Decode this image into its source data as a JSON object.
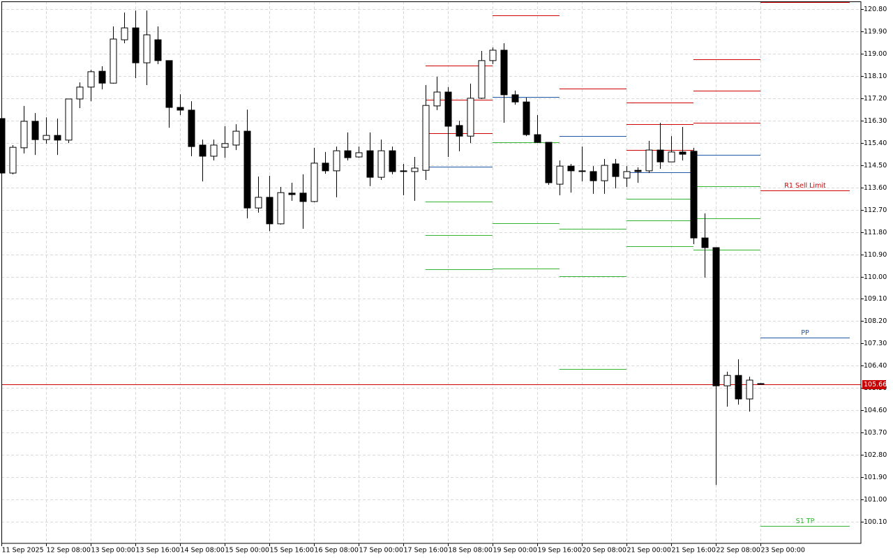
{
  "chart_data": {
    "type": "candlestick",
    "categories": [
      "11 Sep 2025",
      null,
      null,
      null,
      "12 Sep 08:00",
      null,
      null,
      null,
      "13 Sep 00:00",
      null,
      null,
      null,
      "13 Sep 16:00",
      null,
      null,
      null,
      "14 Sep 08:00",
      null,
      null,
      null,
      "15 Sep 00:00",
      null,
      null,
      null,
      "15 Sep 16:00",
      null,
      null,
      null,
      "16 Sep 08:00",
      null,
      null,
      null,
      "17 Sep 00:00",
      null,
      null,
      null,
      "17 Sep 16:00",
      null,
      null,
      null,
      "18 Sep 08:00",
      null,
      null,
      null,
      "19 Sep 00:00",
      null,
      null,
      null,
      "19 Sep 16:00",
      null,
      null,
      null,
      "20 Sep 08:00",
      null,
      null,
      null,
      "21 Sep 00:00",
      null,
      null,
      null,
      "21 Sep 16:00",
      null,
      null,
      null,
      "22 Sep 08:00",
      null,
      null,
      null,
      "23 Sep 00:00"
    ],
    "open": [
      116.38,
      114.18,
      115.2,
      116.27,
      115.53,
      115.7,
      115.51,
      117.17,
      117.65,
      118.29,
      117.81,
      119.56,
      120.04,
      118.63,
      119.56,
      118.72,
      116.83,
      116.72,
      115.31,
      114.86,
      115.22,
      115.31,
      115.87,
      112.77,
      113.2,
      112.13,
      113.37,
      113.37,
      113.03,
      114.58,
      114.27,
      115.08,
      114.83,
      115.08,
      114.01,
      115.08,
      114.27,
      114.24,
      114.29,
      116.89,
      117.45,
      116.1,
      115.67,
      117.2,
      118.72,
      119.14,
      117.34,
      117.05,
      115.73,
      115.42,
      113.73,
      114.46,
      114.27,
      114.24,
      113.87,
      114.55,
      113.98,
      114.29,
      114.27,
      115.11,
      114.63,
      115.03,
      115.06,
      111.56,
      111.17,
      105.59,
      106.01,
      105.06,
      105.68
    ],
    "high": [
      116.43,
      115.31,
      116.89,
      116.6,
      116.43,
      116.38,
      117.17,
      117.84,
      118.35,
      118.49,
      120.1,
      120.66,
      120.74,
      120.74,
      120.1,
      118.72,
      117.36,
      117.08,
      115.53,
      115.53,
      116.07,
      116.15,
      116.74,
      114.04,
      114.07,
      113.62,
      113.79,
      114.13,
      115.2,
      115.03,
      115.25,
      115.82,
      115.25,
      115.82,
      115.53,
      115.25,
      114.55,
      114.83,
      117.73,
      118.07,
      117.65,
      116.29,
      117.79,
      119.11,
      119.25,
      119.42,
      117.51,
      117.22,
      116.52,
      115.42,
      114.69,
      114.55,
      115.25,
      114.46,
      114.75,
      114.75,
      114.46,
      114.41,
      115.48,
      116.21,
      115.67,
      116.04,
      115.2,
      112.55,
      111.17,
      106.16,
      106.66,
      105.96,
      105.7
    ],
    "low": [
      114.13,
      114.13,
      114.97,
      114.91,
      115.37,
      114.91,
      115.39,
      116.8,
      117.08,
      117.56,
      117.79,
      119.42,
      118.01,
      117.73,
      118.58,
      116.01,
      116.52,
      114.86,
      113.84,
      114.69,
      114.8,
      115.11,
      112.35,
      112.58,
      111.84,
      112.1,
      113.06,
      111.93,
      113.0,
      114.15,
      113.2,
      114.69,
      114.8,
      113.65,
      113.9,
      114.13,
      113.28,
      113.06,
      113.9,
      116.72,
      114.83,
      115.06,
      115.39,
      117.17,
      118.58,
      116.21,
      116.94,
      115.67,
      115.39,
      113.7,
      113.28,
      113.39,
      113.84,
      113.34,
      113.34,
      113.56,
      113.62,
      113.79,
      114.18,
      114.35,
      114.63,
      114.69,
      111.31,
      109.96,
      101.59,
      104.75,
      104.83,
      104.55,
      105.63
    ],
    "close": [
      114.18,
      115.22,
      116.27,
      115.53,
      115.7,
      115.51,
      117.17,
      117.65,
      118.27,
      117.81,
      119.59,
      120.04,
      118.63,
      119.76,
      118.72,
      116.83,
      116.72,
      115.25,
      114.86,
      115.31,
      115.37,
      115.87,
      112.77,
      113.2,
      112.13,
      113.39,
      113.31,
      113.03,
      114.58,
      114.27,
      115.08,
      114.8,
      115.0,
      114.01,
      115.08,
      114.24,
      114.24,
      114.38,
      116.91,
      117.45,
      116.07,
      115.67,
      117.2,
      118.72,
      119.14,
      117.34,
      117.05,
      115.73,
      115.42,
      113.79,
      114.46,
      114.27,
      114.24,
      113.87,
      114.49,
      114.04,
      114.24,
      114.24,
      115.11,
      114.63,
      115.03,
      114.94,
      111.56,
      111.17,
      105.59,
      106.01,
      105.06,
      105.82,
      105.66
    ],
    "up_color": "#ffffff",
    "down_color": "#000000",
    "xlim": [
      0,
      77
    ],
    "ylim": [
      99.23,
      121.11
    ],
    "yticks": [
      {
        "value": 100.1,
        "label": "100.10"
      },
      {
        "value": 101.0,
        "label": "101.00"
      },
      {
        "value": 101.9,
        "label": "101.90"
      },
      {
        "value": 102.8,
        "label": "102.80"
      },
      {
        "value": 103.7,
        "label": "103.70"
      },
      {
        "value": 104.6,
        "label": "104.60"
      },
      {
        "value": 105.5,
        "label": "105.50"
      },
      {
        "value": 106.4,
        "label": "106.40"
      },
      {
        "value": 107.3,
        "label": "107.30"
      },
      {
        "value": 108.2,
        "label": "108.20"
      },
      {
        "value": 109.1,
        "label": "109.10"
      },
      {
        "value": 110.0,
        "label": "110.00"
      },
      {
        "value": 110.9,
        "label": "110.90"
      },
      {
        "value": 111.8,
        "label": "111.80"
      },
      {
        "value": 112.7,
        "label": "112.70"
      },
      {
        "value": 113.6,
        "label": "113.60"
      },
      {
        "value": 114.5,
        "label": "114.50"
      },
      {
        "value": 115.4,
        "label": "115.40"
      },
      {
        "value": 116.3,
        "label": "116.30"
      },
      {
        "value": 117.2,
        "label": "117.20"
      },
      {
        "value": 118.1,
        "label": "118.10"
      },
      {
        "value": 119.0,
        "label": "119.00"
      },
      {
        "value": 119.9,
        "label": "119.90"
      },
      {
        "value": 120.8,
        "label": "120.80"
      }
    ],
    "grid": true,
    "current_price": 105.66,
    "current_price_color": "#c80000",
    "levels": [
      {
        "from": 38,
        "to": 44,
        "lines": [
          {
            "value": 118.52,
            "color": "#d00000"
          },
          {
            "value": 117.14,
            "color": "#d00000"
          },
          {
            "value": 115.79,
            "color": "#d00000"
          },
          {
            "value": 114.43,
            "color": "#1f57a8"
          },
          {
            "value": 113.03,
            "color": "#2fb52f"
          },
          {
            "value": 111.67,
            "color": "#2fb52f"
          },
          {
            "value": 110.29,
            "color": "#2fb52f"
          }
        ]
      },
      {
        "from": 44,
        "to": 50,
        "lines": [
          {
            "value": 120.55,
            "color": "#d00000"
          },
          {
            "value": 117.25,
            "color": "#1f57a8"
          },
          {
            "value": 115.42,
            "color": "#2fb52f"
          },
          {
            "value": 112.15,
            "color": "#2fb52f"
          },
          {
            "value": 110.32,
            "color": "#2fb52f"
          }
        ]
      },
      {
        "from": 50,
        "to": 56,
        "lines": [
          {
            "value": 117.59,
            "color": "#d00000"
          },
          {
            "value": 115.67,
            "color": "#1f57a8"
          },
          {
            "value": 111.93,
            "color": "#2fb52f"
          },
          {
            "value": 110.01,
            "color": "#2fb52f"
          },
          {
            "value": 106.27,
            "color": "#2fb52f"
          }
        ]
      },
      {
        "from": 56,
        "to": 62,
        "lines": [
          {
            "value": 117.03,
            "color": "#d00000"
          },
          {
            "value": 116.15,
            "color": "#d00000"
          },
          {
            "value": 115.11,
            "color": "#d00000"
          },
          {
            "value": 114.21,
            "color": "#1f57a8"
          },
          {
            "value": 113.14,
            "color": "#2fb52f"
          },
          {
            "value": 112.27,
            "color": "#2fb52f"
          },
          {
            "value": 111.22,
            "color": "#2fb52f"
          }
        ]
      },
      {
        "from": 62,
        "to": 68,
        "lines": [
          {
            "value": 118.77,
            "color": "#d00000"
          },
          {
            "value": 117.5,
            "color": "#d00000"
          },
          {
            "value": 116.21,
            "color": "#d00000"
          },
          {
            "value": 114.91,
            "color": "#1f57a8"
          },
          {
            "value": 113.65,
            "color": "#2fb52f"
          },
          {
            "value": 112.35,
            "color": "#2fb52f"
          },
          {
            "value": 111.08,
            "color": "#2fb52f"
          }
        ]
      },
      {
        "from": 68,
        "to": 76,
        "lines": [
          {
            "value": 121.08,
            "color": "#d00000"
          },
          {
            "value": 113.48,
            "color": "#d00000",
            "label": "R1 Sell Limit"
          },
          {
            "value": 107.53,
            "color": "#1f57a8",
            "label": "PP"
          },
          {
            "value": 99.93,
            "color": "#2fb52f",
            "label": "S1 TP"
          }
        ]
      }
    ]
  }
}
